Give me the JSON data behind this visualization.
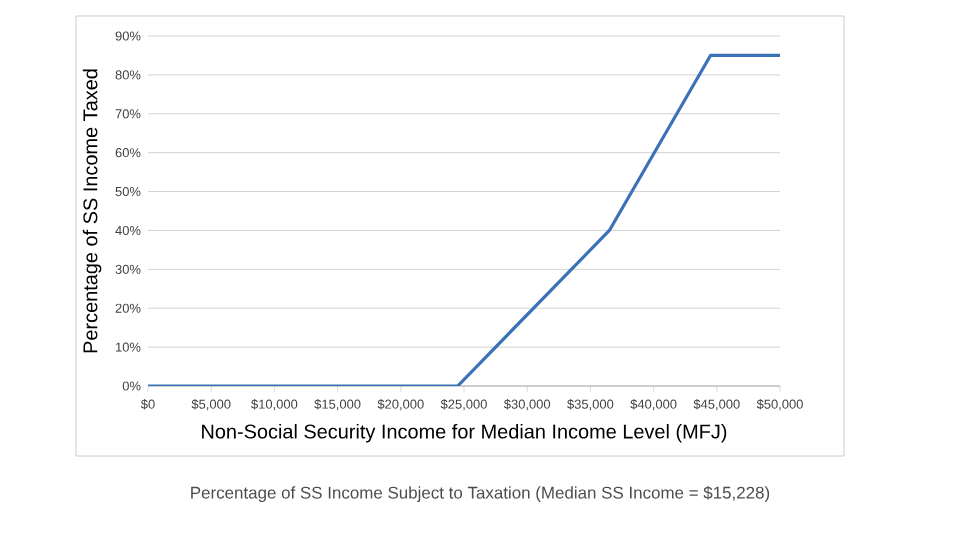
{
  "chart_data": {
    "type": "line",
    "xlabel": "Non-Social Security Income for Median Income Level (MFJ)",
    "ylabel": "Percentage of SS Income Taxed",
    "annotations": [
      "Percentage of SS Income Subject to Taxation (Median SS Income = $15,228)"
    ],
    "x": [
      0,
      24500,
      36500,
      44500,
      50000
    ],
    "series": [
      {
        "color": "#3a72b8",
        "values": [
          0,
          0,
          40,
          85,
          85
        ]
      }
    ],
    "xlim": [
      0,
      50000
    ],
    "xticks": [
      {
        "value": 0,
        "label": "$0"
      },
      {
        "value": 5000,
        "label": "$5,000"
      },
      {
        "value": 10000,
        "label": "$10,000"
      },
      {
        "value": 15000,
        "label": "$15,000"
      },
      {
        "value": 20000,
        "label": "$20,000"
      },
      {
        "value": 25000,
        "label": "$25,000"
      },
      {
        "value": 30000,
        "label": "$30,000"
      },
      {
        "value": 35000,
        "label": "$35,000"
      },
      {
        "value": 40000,
        "label": "$40,000"
      },
      {
        "value": 45000,
        "label": "$45,000"
      },
      {
        "value": 50000,
        "label": "$50,000"
      }
    ],
    "ylim": [
      0,
      90
    ],
    "yticks": [
      {
        "value": 0,
        "label": "0%"
      },
      {
        "value": 10,
        "label": "10%"
      },
      {
        "value": 20,
        "label": "20%"
      },
      {
        "value": 30,
        "label": "30%"
      },
      {
        "value": 40,
        "label": "40%"
      },
      {
        "value": 50,
        "label": "50%"
      },
      {
        "value": 60,
        "label": "60%"
      },
      {
        "value": 70,
        "label": "70%"
      },
      {
        "value": 80,
        "label": "80%"
      },
      {
        "value": 90,
        "label": "90%"
      }
    ],
    "grid": "y",
    "legend": false,
    "marker": "none",
    "line_style": "solid"
  }
}
